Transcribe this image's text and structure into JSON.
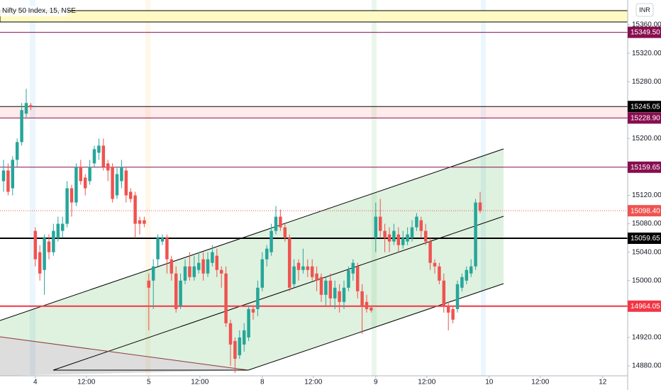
{
  "chart_data": {
    "type": "candlestick",
    "title": "Nifty 50 Index, 15, NSE",
    "currency": "INR",
    "up_color": "#26a69a",
    "down_color": "#ef5350",
    "open": [
      15140,
      15155,
      15130,
      15170,
      15195,
      15235,
      15247,
      15070,
      15040,
      15015,
      15055,
      15040,
      15060,
      15070,
      15080,
      15130,
      15110,
      15160,
      15145,
      15140,
      15165,
      15180,
      15190,
      15165,
      15160,
      15120,
      15140,
      15155,
      15125,
      15120,
      15085,
      15085,
      15000,
      15000,
      15030,
      15055,
      15060,
      15030,
      15010,
      14965,
      15000,
      15020,
      15005,
      15015,
      15030,
      15010,
      15025,
      15035,
      15015,
      15010,
      14940,
      14915,
      14895,
      14910,
      14920,
      14960,
      14960,
      14990,
      15030,
      15040,
      15070,
      15090,
      15075,
      15060,
      14995,
      15025,
      15015,
      15020,
      15020,
      15010,
      15005,
      14980,
      15000,
      14975,
      14985,
      14970,
      14990,
      15010,
      15020,
      14985,
      14970,
      14962,
      15060,
      15090,
      15070,
      15065,
      15055,
      15065,
      15050,
      15055,
      15060,
      15075,
      15085,
      15070,
      15055,
      15025,
      15020,
      15000,
      14965,
      14960,
      14960,
      14990,
      15000,
      15010,
      15020,
      15110
    ],
    "high": [
      15170,
      15165,
      15175,
      15200,
      15250,
      15270,
      15250,
      15075,
      15050,
      15065,
      15065,
      15080,
      15090,
      15090,
      15140,
      15135,
      15165,
      15170,
      15150,
      15170,
      15190,
      15200,
      15200,
      15170,
      15165,
      15160,
      15170,
      15160,
      15130,
      15125,
      15090,
      15090,
      15010,
      15030,
      15065,
      15065,
      15065,
      15035,
      15020,
      15010,
      15030,
      15040,
      15035,
      15040,
      15040,
      15040,
      15050,
      15045,
      15020,
      15020,
      14945,
      14920,
      14930,
      14940,
      14965,
      14965,
      15000,
      15040,
      15050,
      15080,
      15105,
      15100,
      15080,
      15065,
      15030,
      15030,
      15045,
      15030,
      15030,
      15020,
      15010,
      15005,
      15010,
      15000,
      14995,
      15000,
      15020,
      15030,
      15025,
      14995,
      14980,
      14965,
      15110,
      15115,
      15080,
      15075,
      15080,
      15075,
      15070,
      15075,
      15085,
      15095,
      15090,
      15080,
      15060,
      15030,
      15025,
      15010,
      14970,
      14965,
      15000,
      15010,
      15020,
      15030,
      15115,
      15125
    ],
    "low": [
      15125,
      15120,
      15120,
      15160,
      15190,
      15230,
      15240,
      15020,
      15000,
      14980,
      15030,
      15035,
      15055,
      15060,
      15075,
      15090,
      15105,
      15135,
      15120,
      15135,
      15160,
      15170,
      15155,
      15140,
      15110,
      15115,
      15130,
      15110,
      15110,
      15060,
      15065,
      15075,
      14930,
      14960,
      15020,
      15050,
      15010,
      15000,
      14955,
      14960,
      14995,
      15000,
      15000,
      15010,
      15000,
      15005,
      15020,
      15005,
      14990,
      14935,
      14880,
      14870,
      14890,
      14900,
      14915,
      14945,
      14950,
      14985,
      15020,
      15035,
      15065,
      15070,
      15055,
      14985,
      14990,
      15000,
      15010,
      15005,
      15000,
      14985,
      14970,
      14965,
      14965,
      14960,
      14955,
      14960,
      14985,
      15000,
      14975,
      14925,
      14955,
      14955,
      15040,
      15060,
      15040,
      15040,
      15050,
      15040,
      15045,
      15050,
      15055,
      15070,
      15060,
      15050,
      15015,
      15010,
      14995,
      14955,
      14930,
      14940,
      14955,
      14985,
      14995,
      15005,
      15015,
      15095
    ],
    "close": [
      15155,
      15125,
      15170,
      15195,
      15240,
      15250,
      15244,
      15030,
      15010,
      15060,
      15040,
      15070,
      15080,
      15080,
      15130,
      15110,
      15160,
      15140,
      15130,
      15160,
      15185,
      15190,
      15160,
      15155,
      15115,
      15150,
      15160,
      15120,
      15115,
      15080,
      15080,
      15080,
      14990,
      15020,
      15060,
      15060,
      15030,
      15010,
      14960,
      15000,
      15020,
      15005,
      15020,
      15025,
      15010,
      15030,
      15040,
      15015,
      15010,
      14940,
      14910,
      14890,
      14920,
      14930,
      14960,
      14955,
      14990,
      15030,
      15045,
      15070,
      15090,
      15075,
      15060,
      14990,
      15020,
      15015,
      15020,
      15015,
      15005,
      15000,
      14980,
      15000,
      14975,
      14990,
      14970,
      14990,
      15015,
      15025,
      14985,
      14965,
      14960,
      14958,
      15090,
      15070,
      15060,
      15055,
      15070,
      15050,
      15060,
      15065,
      15075,
      15090,
      15070,
      15055,
      15025,
      15020,
      15000,
      14965,
      14955,
      14945,
      14995,
      15005,
      15015,
      15020,
      15110,
      15098.4
    ],
    "xlim": [
      -0.78,
      137.5
    ],
    "xticks": [
      {
        "value": 7,
        "label": "4"
      },
      {
        "value": 18.25,
        "label": "12:00"
      },
      {
        "value": 32,
        "label": "5"
      },
      {
        "value": 43.25,
        "label": "12:00"
      },
      {
        "value": 57,
        "label": "8"
      },
      {
        "value": 68.25,
        "label": "12:00"
      },
      {
        "value": 82,
        "label": "9"
      },
      {
        "value": 93.25,
        "label": "12:00"
      },
      {
        "value": 107,
        "label": "10"
      },
      {
        "value": 118.25,
        "label": "12:00"
      },
      {
        "value": 132,
        "label": "12"
      }
    ],
    "ylim": [
      14866,
      15395
    ],
    "yticks": [
      {
        "value": 15360,
        "label": "15360.00"
      },
      {
        "value": 15320,
        "label": "15320.00"
      },
      {
        "value": 15280,
        "label": "15280.00"
      },
      {
        "value": 15200,
        "label": "15200.00"
      },
      {
        "value": 15120,
        "label": "15120.00"
      },
      {
        "value": 15080,
        "label": "15080.00"
      },
      {
        "value": 15040,
        "label": "15040.00"
      },
      {
        "value": 15000,
        "label": "15000.00"
      },
      {
        "value": 14920,
        "label": "14920.00"
      },
      {
        "value": 14880,
        "label": "14880.00"
      }
    ],
    "levels": [
      {
        "value": 15349.5,
        "label": "15349.50",
        "color": "#880e4f",
        "style": "solid"
      },
      {
        "value": 15245.05,
        "label": "15245.05",
        "color": "#000000",
        "style": "solid"
      },
      {
        "value": 15228.9,
        "label": "15228.90",
        "color": "#880e4f",
        "style": "solid"
      },
      {
        "value": 15159.65,
        "label": "15159.65",
        "color": "#880e4f",
        "style": "solid"
      },
      {
        "value": 15098.4,
        "label": "15098.40",
        "color": "#ef5350",
        "style": "dotted"
      },
      {
        "value": 15059.65,
        "label": "15059.65",
        "color": "#000000",
        "style": "solid"
      },
      {
        "value": 14964.05,
        "label": "14964.05",
        "color": "#f23645",
        "style": "solid"
      }
    ]
  }
}
